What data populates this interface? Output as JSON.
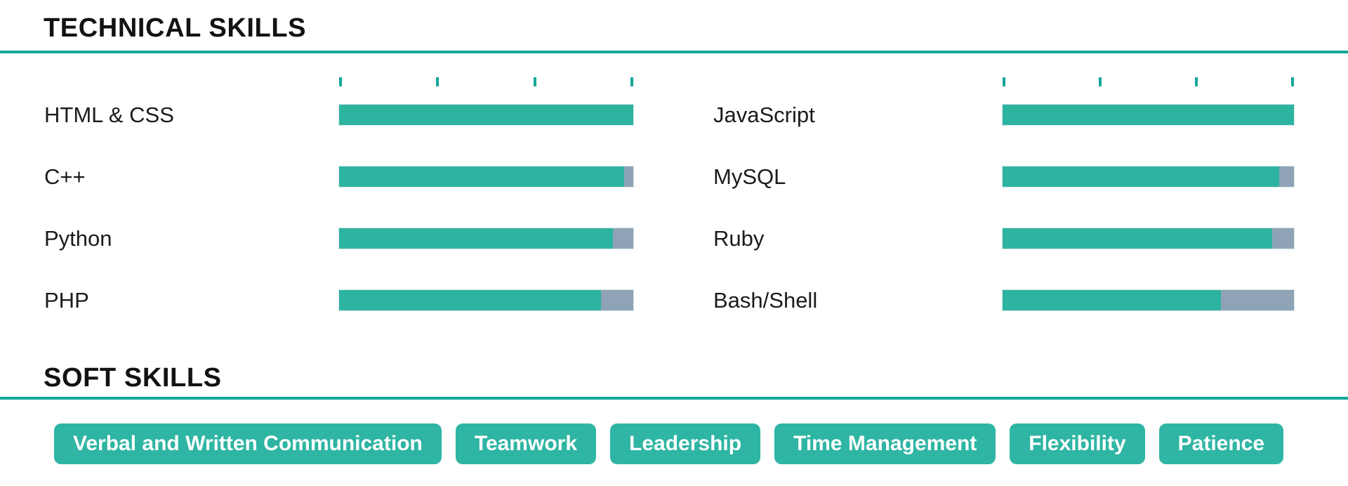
{
  "technical_skills": {
    "heading": "TECHNICAL SKILLS",
    "scale_ticks_per_column": 4,
    "columns": [
      {
        "skills": [
          {
            "name": "HTML & CSS",
            "level_percent": 100
          },
          {
            "name": "C++",
            "level_percent": 97
          },
          {
            "name": "Python",
            "level_percent": 93
          },
          {
            "name": "PHP",
            "level_percent": 89
          }
        ]
      },
      {
        "skills": [
          {
            "name": "JavaScript",
            "level_percent": 100
          },
          {
            "name": "MySQL",
            "level_percent": 95
          },
          {
            "name": "Ruby",
            "level_percent": 92.5
          },
          {
            "name": "Bash/Shell",
            "level_percent": 75
          }
        ]
      }
    ]
  },
  "soft_skills": {
    "heading": "SOFT SKILLS",
    "items": [
      "Verbal and Written Communication",
      "Teamwork",
      "Leadership",
      "Time Management",
      "Flexibility",
      "Patience"
    ]
  },
  "colors": {
    "accent_teal": "#12a79b",
    "bar_fill": "#2db4a1",
    "bar_remainder": "#8ea3b6",
    "pill_background": "#2fb5a3",
    "pill_text": "#ffffff",
    "heading_text": "#121212",
    "label_text": "#1b1b1b",
    "page_background": "#ffffff"
  }
}
